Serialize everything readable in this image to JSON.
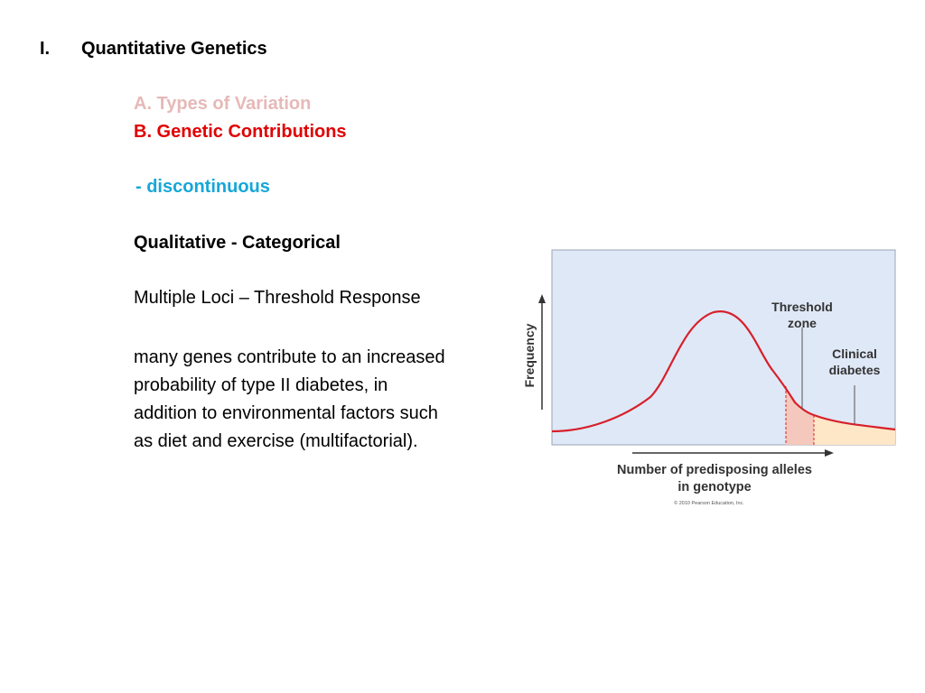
{
  "heading": {
    "number": "I.",
    "title": "Quantitative Genetics"
  },
  "subheadings": {
    "a": "A.  Types of Variation",
    "b": "B. Genetic Contributions"
  },
  "bullet": " - discontinuous",
  "qualitative": "Qualitative - Categorical",
  "multiple_loci": "Multiple Loci – Threshold Response",
  "description_lines": [
    "many genes contribute to an increased",
    "probability of type II diabetes, in",
    "addition to environmental factors such",
    "as diet and exercise (multifactorial)."
  ],
  "figure": {
    "y_axis_label": "Frequency",
    "threshold_label_line1": "Threshold",
    "threshold_label_line2": "zone",
    "clinical_label_line1": "Clinical",
    "clinical_label_line2": "diabetes",
    "x_axis_label_line1": "Number of predisposing alleles",
    "x_axis_label_line2": "in genotype",
    "copyright": "© 2010 Pearson Education, Inc.",
    "colors": {
      "panel_bg": "#dfe8f6",
      "curve": "#d7202b",
      "threshold_fill": "#f4c8bc",
      "clinical_fill": "#fde7c7"
    }
  }
}
